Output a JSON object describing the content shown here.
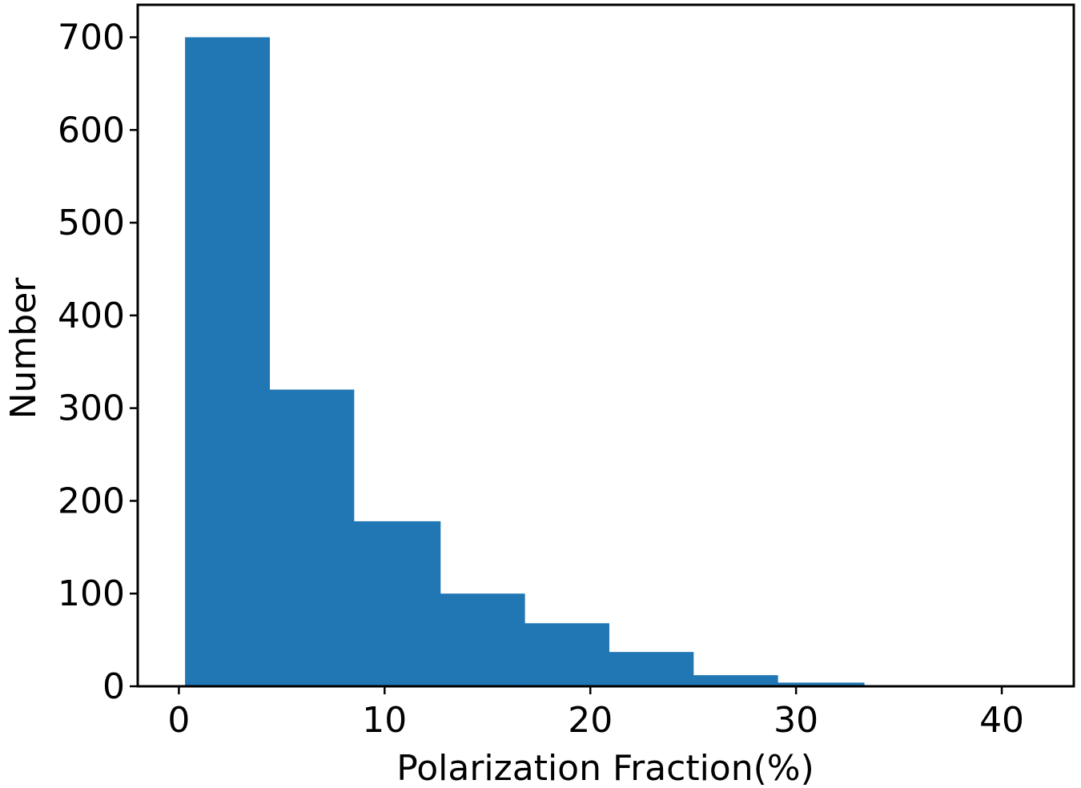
{
  "chart_data": {
    "type": "bar",
    "title": "",
    "xlabel": "Polarization Fraction(%)",
    "ylabel": "Number",
    "xlim": [
      -2.0,
      43.5
    ],
    "ylim": [
      0,
      735
    ],
    "xticks": [
      0,
      10,
      20,
      30,
      40
    ],
    "yticks": [
      0,
      100,
      200,
      300,
      400,
      500,
      600,
      700
    ],
    "bins": [
      {
        "x0": 0.3,
        "x1": 4.4,
        "value": 700
      },
      {
        "x0": 4.4,
        "x1": 8.5,
        "value": 320
      },
      {
        "x0": 8.5,
        "x1": 12.7,
        "value": 178
      },
      {
        "x0": 12.7,
        "x1": 16.8,
        "value": 100
      },
      {
        "x0": 16.8,
        "x1": 20.9,
        "value": 68
      },
      {
        "x0": 20.9,
        "x1": 25.0,
        "value": 37
      },
      {
        "x0": 25.0,
        "x1": 29.1,
        "value": 12
      },
      {
        "x0": 29.1,
        "x1": 33.3,
        "value": 4
      },
      {
        "x0": 33.3,
        "x1": 37.4,
        "value": 1
      },
      {
        "x0": 37.4,
        "x1": 41.5,
        "value": 1
      }
    ],
    "grid": false,
    "colors": {
      "bar": "#2077b4",
      "axes": "#000000"
    }
  }
}
